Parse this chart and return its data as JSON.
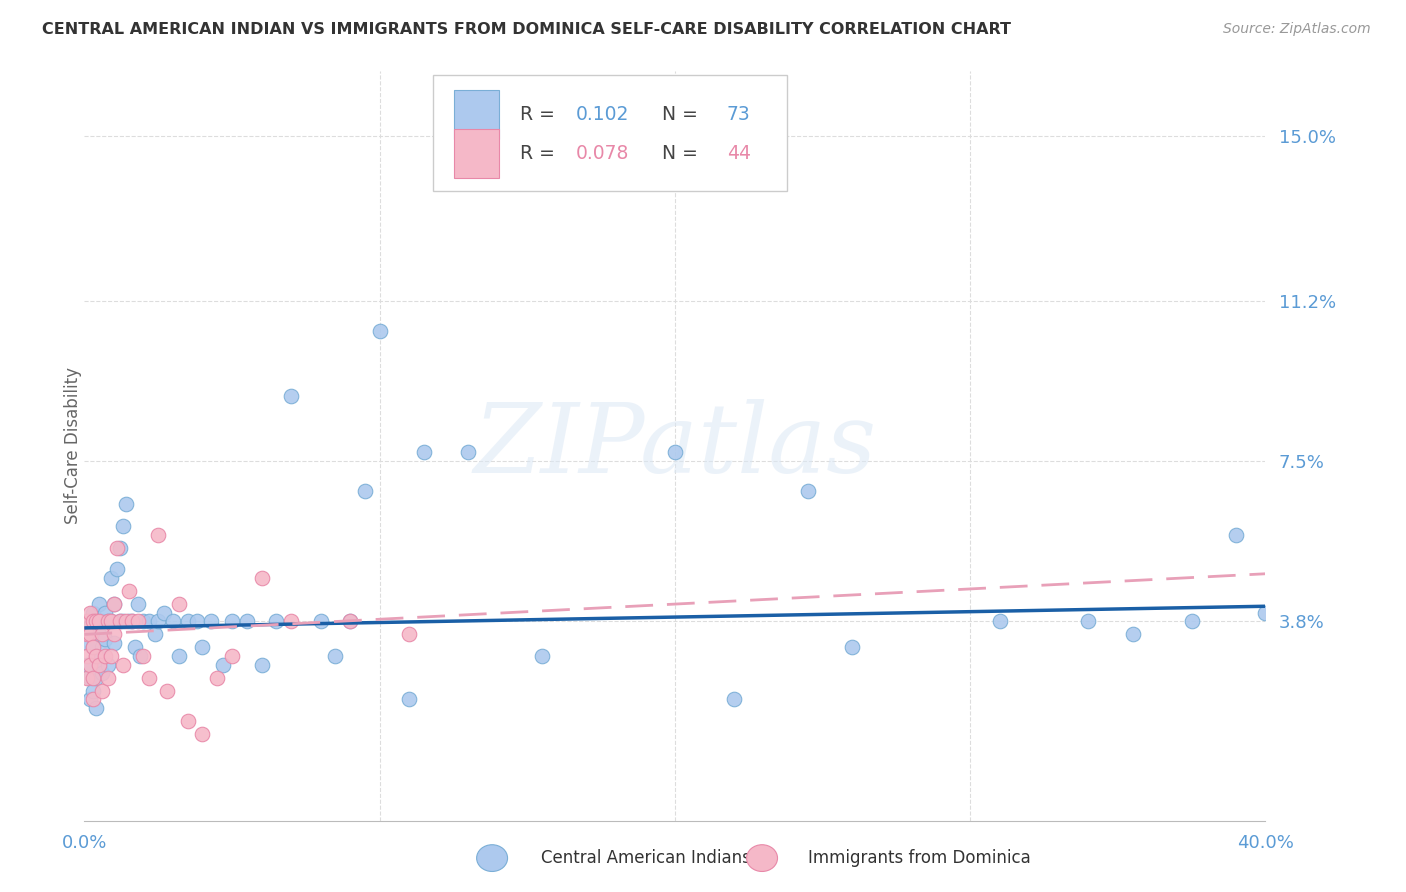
{
  "title": "CENTRAL AMERICAN INDIAN VS IMMIGRANTS FROM DOMINICA SELF-CARE DISABILITY CORRELATION CHART",
  "source": "Source: ZipAtlas.com",
  "ylabel": "Self-Care Disability",
  "background_color": "#ffffff",
  "title_color": "#333333",
  "source_color": "#999999",
  "tick_color": "#5b9bd5",
  "xlim": [
    0.0,
    0.4
  ],
  "ylim": [
    -0.008,
    0.165
  ],
  "ytick_vals": [
    0.038,
    0.075,
    0.112,
    0.15
  ],
  "ytick_labels": [
    "3.8%",
    "7.5%",
    "11.2%",
    "15.0%"
  ],
  "xtick_vals": [
    0.0,
    0.1,
    0.2,
    0.3,
    0.4
  ],
  "xtick_labels": [
    "0.0%",
    "",
    "",
    "",
    "40.0%"
  ],
  "watermark": "ZIPatlas",
  "series1_color": "#adc9ee",
  "series1_edge": "#7aaed6",
  "series2_color": "#f5b8c8",
  "series2_edge": "#e888a8",
  "series1_R": 0.102,
  "series1_N": 73,
  "series2_R": 0.078,
  "series2_N": 44,
  "series1_label": "Central American Indians",
  "series2_label": "Immigrants from Dominica",
  "trendline1_color": "#1a5fa6",
  "trendline2_color": "#e8a0b8",
  "trendline1_x0": 0.0,
  "trendline1_y0": 0.0365,
  "trendline1_x1": 0.4,
  "trendline1_y1": 0.0415,
  "trendline2_x0": 0.0,
  "trendline2_y0": 0.035,
  "trendline2_x1": 0.4,
  "trendline2_y1": 0.049,
  "series1_x": [
    0.001,
    0.001,
    0.002,
    0.002,
    0.002,
    0.003,
    0.003,
    0.003,
    0.004,
    0.004,
    0.004,
    0.004,
    0.005,
    0.005,
    0.005,
    0.006,
    0.006,
    0.006,
    0.007,
    0.007,
    0.008,
    0.008,
    0.009,
    0.009,
    0.01,
    0.01,
    0.011,
    0.012,
    0.012,
    0.013,
    0.013,
    0.014,
    0.015,
    0.016,
    0.017,
    0.018,
    0.019,
    0.02,
    0.022,
    0.024,
    0.025,
    0.027,
    0.03,
    0.032,
    0.035,
    0.038,
    0.04,
    0.043,
    0.047,
    0.05,
    0.055,
    0.06,
    0.065,
    0.07,
    0.08,
    0.085,
    0.09,
    0.095,
    0.1,
    0.11,
    0.115,
    0.13,
    0.155,
    0.2,
    0.22,
    0.245,
    0.26,
    0.31,
    0.34,
    0.355,
    0.375,
    0.39,
    0.4
  ],
  "series1_y": [
    0.033,
    0.028,
    0.037,
    0.025,
    0.02,
    0.04,
    0.032,
    0.022,
    0.038,
    0.03,
    0.025,
    0.018,
    0.042,
    0.035,
    0.028,
    0.038,
    0.032,
    0.026,
    0.04,
    0.034,
    0.038,
    0.028,
    0.048,
    0.038,
    0.042,
    0.033,
    0.05,
    0.038,
    0.055,
    0.06,
    0.038,
    0.065,
    0.038,
    0.038,
    0.032,
    0.042,
    0.03,
    0.038,
    0.038,
    0.035,
    0.038,
    0.04,
    0.038,
    0.03,
    0.038,
    0.038,
    0.032,
    0.038,
    0.028,
    0.038,
    0.038,
    0.028,
    0.038,
    0.09,
    0.038,
    0.03,
    0.038,
    0.068,
    0.105,
    0.02,
    0.077,
    0.077,
    0.03,
    0.077,
    0.02,
    0.068,
    0.032,
    0.038,
    0.038,
    0.035,
    0.038,
    0.058,
    0.04
  ],
  "series2_x": [
    0.001,
    0.001,
    0.001,
    0.001,
    0.002,
    0.002,
    0.002,
    0.003,
    0.003,
    0.003,
    0.003,
    0.004,
    0.004,
    0.005,
    0.005,
    0.006,
    0.006,
    0.007,
    0.008,
    0.008,
    0.009,
    0.009,
    0.01,
    0.01,
    0.011,
    0.012,
    0.013,
    0.014,
    0.015,
    0.016,
    0.018,
    0.02,
    0.022,
    0.025,
    0.028,
    0.032,
    0.035,
    0.04,
    0.045,
    0.05,
    0.06,
    0.07,
    0.09,
    0.11
  ],
  "series2_y": [
    0.038,
    0.035,
    0.03,
    0.025,
    0.04,
    0.035,
    0.028,
    0.038,
    0.032,
    0.025,
    0.02,
    0.038,
    0.03,
    0.038,
    0.028,
    0.035,
    0.022,
    0.03,
    0.038,
    0.025,
    0.038,
    0.03,
    0.042,
    0.035,
    0.055,
    0.038,
    0.028,
    0.038,
    0.045,
    0.038,
    0.038,
    0.03,
    0.025,
    0.058,
    0.022,
    0.042,
    0.015,
    0.012,
    0.025,
    0.03,
    0.048,
    0.038,
    0.038,
    0.035
  ]
}
